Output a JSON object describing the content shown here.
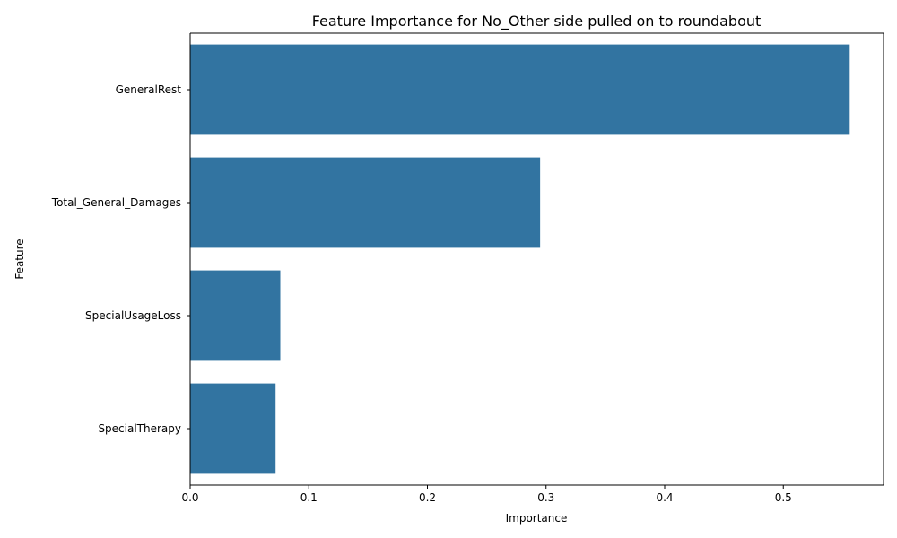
{
  "chart_data": {
    "type": "bar",
    "orientation": "horizontal",
    "title": "Feature Importance for No_Other side pulled on to roundabout",
    "xlabel": "Importance",
    "ylabel": "Feature",
    "categories": [
      "GeneralRest",
      "Total_General_Damages",
      "SpecialUsageLoss",
      "SpecialTherapy"
    ],
    "values": [
      0.556,
      0.295,
      0.076,
      0.072
    ],
    "xlim": [
      0,
      0.5845
    ],
    "xticks": [
      0.0,
      0.1,
      0.2,
      0.3,
      0.4,
      0.5
    ],
    "xtick_labels": [
      "0.0",
      "0.1",
      "0.2",
      "0.3",
      "0.4",
      "0.5"
    ],
    "grid": false,
    "bar_color": "#3274a1"
  }
}
